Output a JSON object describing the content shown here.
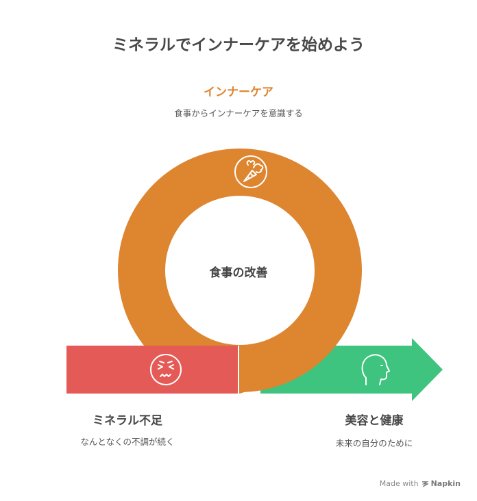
{
  "title": "ミネラルでインナーケアを始めよう",
  "top": {
    "title": "インナーケア",
    "description": "食事からインナーケアを意識する",
    "icon": "carrot-vegetables-icon"
  },
  "center": {
    "label": "食事の改善"
  },
  "left": {
    "title": "ミネラル不足",
    "description": "なんとなくの不調が続く",
    "icon": "stressed-face-icon"
  },
  "right": {
    "title": "美容と健康",
    "description": "未来の自分のために",
    "icon": "head-profile-icon"
  },
  "watermark": {
    "made_with": "Made with",
    "brand": "Napkin"
  },
  "colors": {
    "orange": "#de8530",
    "red": "#e45a56",
    "green": "#3ec47e"
  }
}
